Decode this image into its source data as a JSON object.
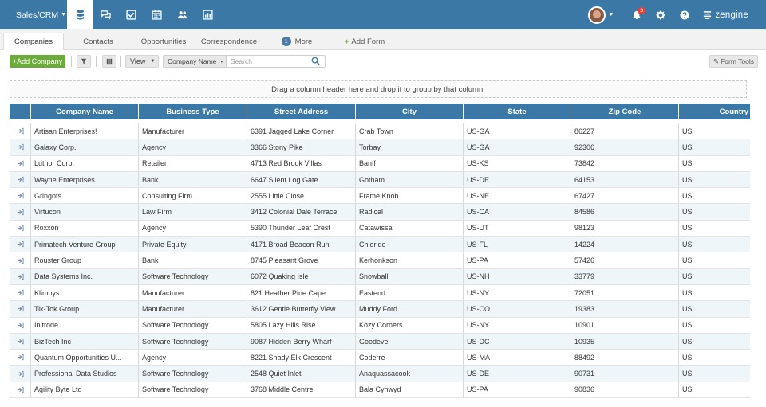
{
  "app": {
    "workspace_label": "Sales/CRM",
    "brand": "zengine",
    "notification_count": "3"
  },
  "nav_icons": [
    "database-icon",
    "chat-icon",
    "checklist-icon",
    "calendar-icon",
    "people-icon",
    "chart-icon"
  ],
  "tabs": {
    "companies": "Companies",
    "contacts": "Contacts",
    "opportunities": "Opportunities",
    "correspondence": "Correspondence",
    "more_count": "1",
    "more": "More",
    "add_form": "Add Form"
  },
  "toolbar": {
    "add_label": "+Add Company",
    "view_label": "View",
    "field_select": "Company Name",
    "search_placeholder": "Search",
    "form_tools": "Form Tools"
  },
  "group_panel": "Drag a column header here and drop it to group by that column.",
  "columns": [
    "Company Name",
    "Business Type",
    "Street Address",
    "City",
    "State",
    "Zip Code",
    "Country"
  ],
  "rows": [
    [
      "Artisan Enterprises!",
      "Manufacturer",
      "6391 Jagged Lake Corner",
      "Crab Town",
      "US-GA",
      "86227",
      "US"
    ],
    [
      "Galaxy Corp.",
      "Agency",
      "3366 Stony Pike",
      "Torbay",
      "US-GA",
      "92306",
      "US"
    ],
    [
      "Luthor Corp.",
      "Retailer",
      "4713 Red Brook Villas",
      "Banff",
      "US-KS",
      "73842",
      "US"
    ],
    [
      "Wayne Enterprises",
      "Bank",
      "6647 Silent Log Gate",
      "Gotham",
      "US-DE",
      "64153",
      "US"
    ],
    [
      "Gringots",
      "Consulting Firm",
      "2555 Little Close",
      "Frame Knob",
      "US-NE",
      "67427",
      "US"
    ],
    [
      "Virtucon",
      "Law Firm",
      "3412 Colonial Dale Terrace",
      "Radical",
      "US-CA",
      "84586",
      "US"
    ],
    [
      "Roxxon",
      "Agency",
      "5390 Thunder Leaf Crest",
      "Catawissa",
      "US-UT",
      "98123",
      "US"
    ],
    [
      "Primatech Venture Group",
      "Private Equity",
      "4171 Broad Beacon Run",
      "Chloride",
      "US-FL",
      "14224",
      "US"
    ],
    [
      "Rouster Group",
      "Bank",
      "8745 Pleasant Grove",
      "Kerhonkson",
      "US-PA",
      "57426",
      "US"
    ],
    [
      "Data Systems Inc.",
      "Software Technology",
      "6072 Quaking Isle",
      "Snowball",
      "US-NH",
      "33779",
      "US"
    ],
    [
      "Klimpys",
      "Manufacturer",
      "821 Heather Pine Cape",
      "Eastend",
      "US-NY",
      "72051",
      "US"
    ],
    [
      "Tik-Tok Group",
      "Manufacturer",
      "3612 Gentle Butterfly View",
      "Muddy Ford",
      "US-CO",
      "19383",
      "US"
    ],
    [
      "Initrode",
      "Software Technology",
      "5805 Lazy Hills Rise",
      "Kozy Corners",
      "US-NY",
      "10901",
      "US"
    ],
    [
      "BizTech Inc",
      "Software Technology",
      "9087 Hidden Berry Wharf",
      "Goodeve",
      "US-DC",
      "10935",
      "US"
    ],
    [
      "Quantum Opportunities U...",
      "Agency",
      "8221 Shady Elk Crescent",
      "Coderre",
      "US-MA",
      "88492",
      "US"
    ],
    [
      "Professional Data Studios",
      "Software Technology",
      "2548 Quiet Inlet",
      "Anaquassacook",
      "US-DE",
      "90731",
      "US"
    ],
    [
      "Agility Byte Ltd",
      "Software Technology",
      "3768 Middle Centre",
      "Bala Cynwyd",
      "US-PA",
      "90836",
      "US"
    ]
  ],
  "colors": {
    "header_blue": "#3b78a6",
    "add_green": "#6aab3a",
    "row_stripe": "#eef6fa"
  }
}
